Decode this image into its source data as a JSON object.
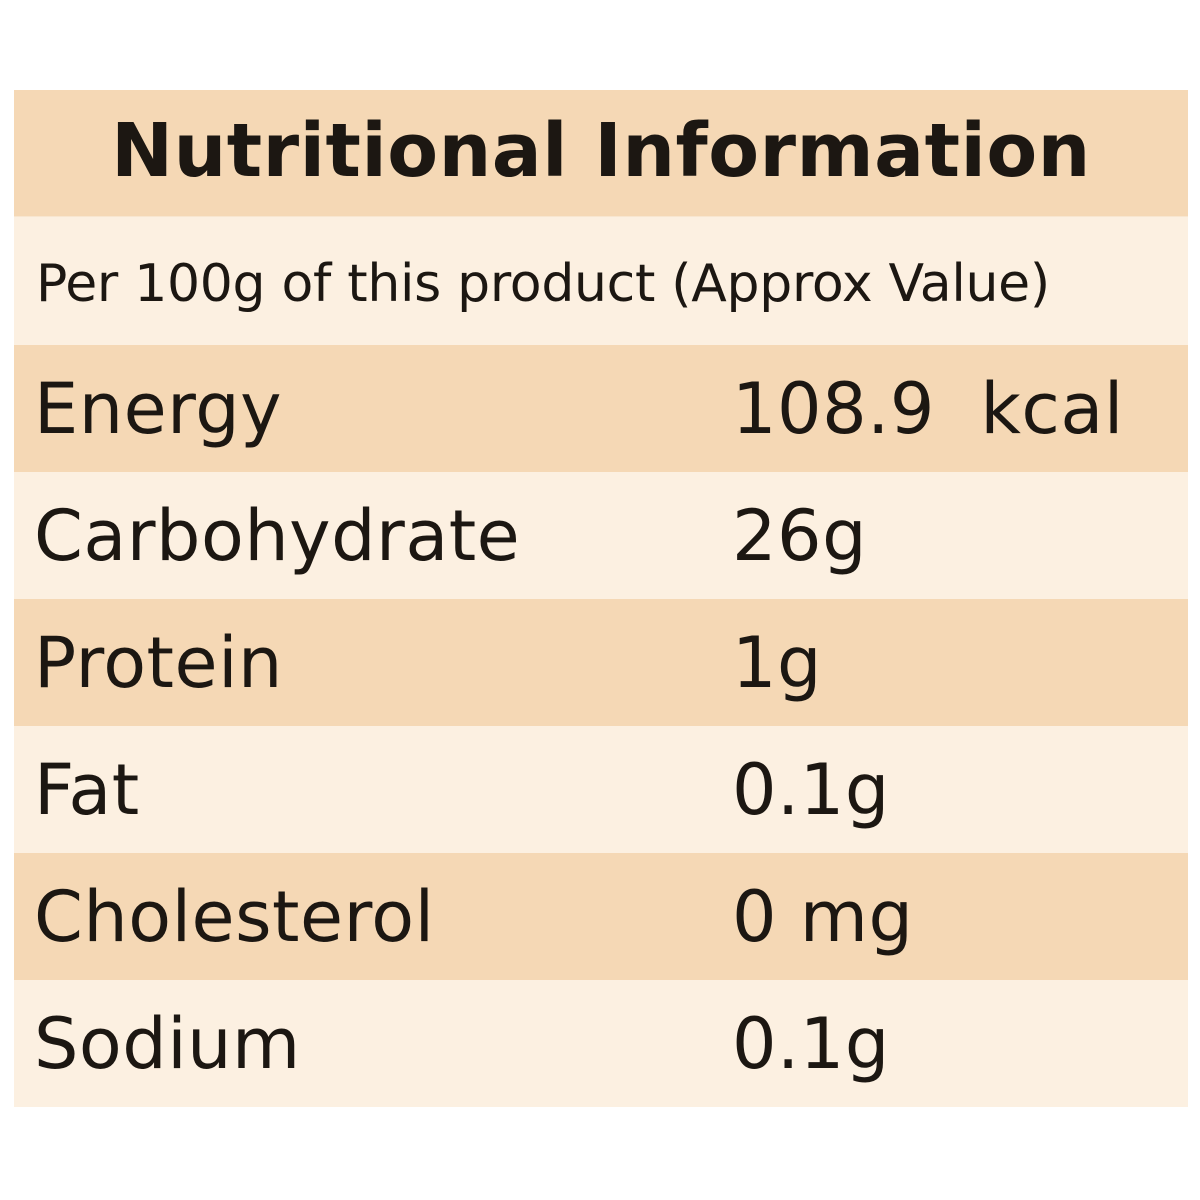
{
  "panel": {
    "title": "Nutritional Information",
    "subtitle": "Per 100g of this product (Approx Value)",
    "rows": [
      {
        "name": "Energy",
        "value": "108.9  kcal"
      },
      {
        "name": "Carbohydrate",
        "value": "26g"
      },
      {
        "name": "Protein",
        "value": "1g"
      },
      {
        "name": "Fat",
        "value": "0.1g"
      },
      {
        "name": "Cholesterol",
        "value": "0 mg"
      },
      {
        "name": "Sodium",
        "value": "0.1g"
      }
    ]
  },
  "colors": {
    "dark_band": "#f5d8b5",
    "light_band": "#fcf0e1",
    "text": "#1c1712"
  }
}
